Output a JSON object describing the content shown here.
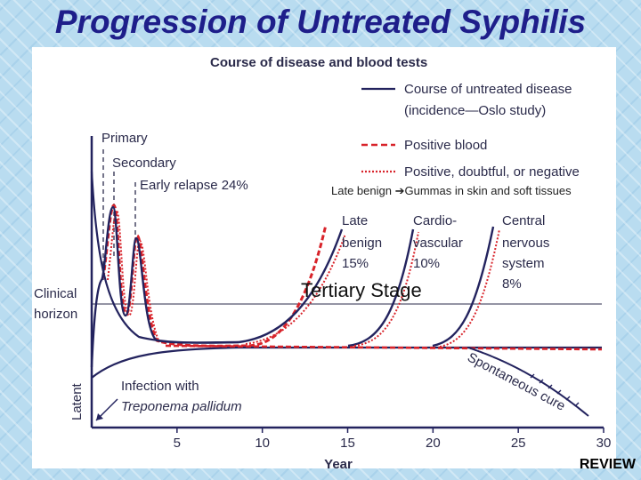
{
  "slide_title": "Progression of Untreated Syphilis",
  "note_prefix": "Late benign ",
  "note_arrow": "➔",
  "note_suffix": "Gummas in skin and soft tissues",
  "tertiary_label": "Tertiary Stage",
  "review_label": "REVIEW",
  "colors": {
    "title": "#1e1e8a",
    "disease": "#23235e",
    "positive_blood": "#d8232a",
    "doubtful": "#d8232a"
  },
  "chart_data": {
    "type": "line",
    "title": "Course of disease and blood tests",
    "xlabel": "Year",
    "ylabel": "Latent",
    "xlim": [
      0,
      30
    ],
    "x_ticks": [
      "5",
      "10",
      "15",
      "20",
      "25",
      "30"
    ],
    "horizon_label_line1": "Clinical",
    "horizon_label_line2": "horizon",
    "legend": [
      {
        "line1": "Course of untreated disease",
        "line2": "(incidence—Oslo study)",
        "style": "solid"
      },
      {
        "line1": "Positive blood",
        "line2": "",
        "style": "dashed"
      },
      {
        "line1": "Positive, doubtful, or negative",
        "line2": "",
        "style": "dotted"
      }
    ],
    "stage_labels": {
      "primary": "Primary",
      "secondary": "Secondary",
      "early_relapse": "Early relapse 24%"
    },
    "outcomes": [
      {
        "line1": "Late",
        "line2": "benign",
        "line3": "15%",
        "onset_year": 9,
        "peak_year": 14.5
      },
      {
        "line1": "Cardio-",
        "line2": "vascular",
        "line3": "10%",
        "onset_year": 15,
        "peak_year": 18.5
      },
      {
        "line1": "Central",
        "line2": "nervous",
        "line3": "system",
        "line4": "8%",
        "onset_year": 19.5,
        "peak_year": 23
      }
    ],
    "spontaneous_cure": "Spontaneous cure",
    "infection_line1": "Infection with",
    "infection_line2": "Treponema pallidum"
  }
}
